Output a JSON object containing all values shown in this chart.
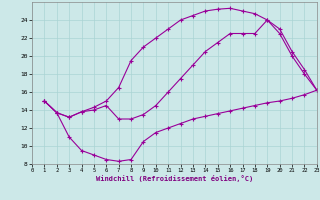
{
  "xlabel": "Windchill (Refroidissement éolien,°C)",
  "bg_color": "#cce8e8",
  "line_color": "#990099",
  "xlim": [
    0,
    23
  ],
  "ylim": [
    8,
    26
  ],
  "xticks": [
    0,
    1,
    2,
    3,
    4,
    5,
    6,
    7,
    8,
    9,
    10,
    11,
    12,
    13,
    14,
    15,
    16,
    17,
    18,
    19,
    20,
    21,
    22,
    23
  ],
  "yticks": [
    8,
    10,
    12,
    14,
    16,
    18,
    20,
    22,
    24
  ],
  "grid_color": "#aad4d4",
  "line1_x": [
    1,
    2,
    3,
    4,
    5,
    6,
    7,
    8,
    9,
    10,
    11,
    12,
    13,
    14,
    15,
    16,
    17,
    18,
    19,
    20,
    21,
    22,
    23
  ],
  "line1_y": [
    15.0,
    13.7,
    13.2,
    13.8,
    14.3,
    15.0,
    16.5,
    19.5,
    21.0,
    22.0,
    23.0,
    24.0,
    24.5,
    25.0,
    25.2,
    25.3,
    25.0,
    24.7,
    24.0,
    23.0,
    20.5,
    18.5,
    16.2
  ],
  "line2_x": [
    1,
    2,
    3,
    4,
    5,
    6,
    7,
    8,
    9,
    10,
    11,
    12,
    13,
    14,
    15,
    16,
    17,
    18,
    19,
    20,
    21,
    22,
    23
  ],
  "line2_y": [
    15.0,
    13.7,
    13.2,
    13.8,
    14.0,
    14.5,
    13.0,
    13.0,
    13.5,
    14.5,
    16.0,
    17.5,
    19.0,
    20.5,
    21.5,
    22.5,
    22.5,
    22.5,
    24.0,
    22.5,
    20.0,
    18.0,
    16.2
  ],
  "line3_x": [
    1,
    2,
    3,
    4,
    5,
    6,
    7,
    8,
    9,
    10,
    11,
    12,
    13,
    14,
    15,
    16,
    17,
    18,
    19,
    20,
    21,
    22,
    23
  ],
  "line3_y": [
    15.0,
    13.7,
    11.0,
    9.5,
    9.0,
    8.5,
    8.3,
    8.5,
    10.5,
    11.5,
    12.0,
    12.5,
    13.0,
    13.3,
    13.6,
    13.9,
    14.2,
    14.5,
    14.8,
    15.0,
    15.3,
    15.7,
    16.2
  ]
}
